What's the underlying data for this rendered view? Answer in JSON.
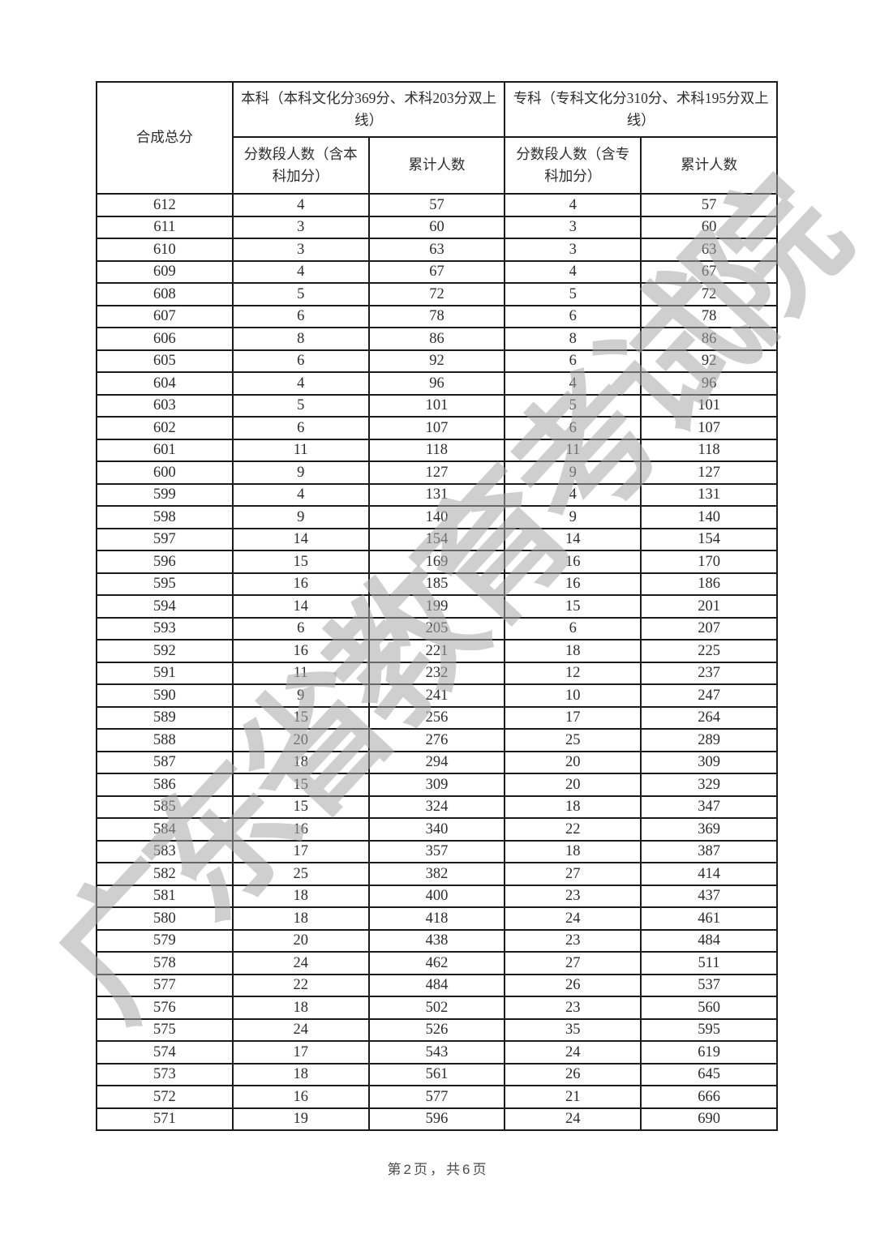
{
  "watermark": {
    "text": "广东省教育考试院"
  },
  "footer": {
    "page_indicator": "第2页，共6页"
  },
  "table": {
    "headers": {
      "score_col": "合成总分",
      "benke_group": "本科（本科文化分369分、术科203分双上线）",
      "zhuanke_group": "专科（专科文化分310分、术科195分双上线）",
      "benke_segment_count": "分数段人数（含本科加分）",
      "benke_cumulative": "累计人数",
      "zhuanke_segment_count": "分数段人数（含专科加分）",
      "zhuanke_cumulative": "累计人数"
    },
    "rows": [
      [
        612,
        4,
        57,
        4,
        57
      ],
      [
        611,
        3,
        60,
        3,
        60
      ],
      [
        610,
        3,
        63,
        3,
        63
      ],
      [
        609,
        4,
        67,
        4,
        67
      ],
      [
        608,
        5,
        72,
        5,
        72
      ],
      [
        607,
        6,
        78,
        6,
        78
      ],
      [
        606,
        8,
        86,
        8,
        86
      ],
      [
        605,
        6,
        92,
        6,
        92
      ],
      [
        604,
        4,
        96,
        4,
        96
      ],
      [
        603,
        5,
        101,
        5,
        101
      ],
      [
        602,
        6,
        107,
        6,
        107
      ],
      [
        601,
        11,
        118,
        11,
        118
      ],
      [
        600,
        9,
        127,
        9,
        127
      ],
      [
        599,
        4,
        131,
        4,
        131
      ],
      [
        598,
        9,
        140,
        9,
        140
      ],
      [
        597,
        14,
        154,
        14,
        154
      ],
      [
        596,
        15,
        169,
        16,
        170
      ],
      [
        595,
        16,
        185,
        16,
        186
      ],
      [
        594,
        14,
        199,
        15,
        201
      ],
      [
        593,
        6,
        205,
        6,
        207
      ],
      [
        592,
        16,
        221,
        18,
        225
      ],
      [
        591,
        11,
        232,
        12,
        237
      ],
      [
        590,
        9,
        241,
        10,
        247
      ],
      [
        589,
        15,
        256,
        17,
        264
      ],
      [
        588,
        20,
        276,
        25,
        289
      ],
      [
        587,
        18,
        294,
        20,
        309
      ],
      [
        586,
        15,
        309,
        20,
        329
      ],
      [
        585,
        15,
        324,
        18,
        347
      ],
      [
        584,
        16,
        340,
        22,
        369
      ],
      [
        583,
        17,
        357,
        18,
        387
      ],
      [
        582,
        25,
        382,
        27,
        414
      ],
      [
        581,
        18,
        400,
        23,
        437
      ],
      [
        580,
        18,
        418,
        24,
        461
      ],
      [
        579,
        20,
        438,
        23,
        484
      ],
      [
        578,
        24,
        462,
        27,
        511
      ],
      [
        577,
        22,
        484,
        26,
        537
      ],
      [
        576,
        18,
        502,
        23,
        560
      ],
      [
        575,
        24,
        526,
        35,
        595
      ],
      [
        574,
        17,
        543,
        24,
        619
      ],
      [
        573,
        18,
        561,
        26,
        645
      ],
      [
        572,
        16,
        577,
        21,
        666
      ],
      [
        571,
        19,
        596,
        24,
        690
      ]
    ]
  },
  "chart_data": {
    "type": "table",
    "title": "合成总分分数段统计表（第2页）",
    "columns": [
      "合成总分",
      "本科分数段人数（含本科加分）",
      "本科累计人数",
      "专科分数段人数（含专科加分）",
      "专科累计人数"
    ],
    "benke_note": "本科（本科文化分369分、术科203分双上线）",
    "zhuanke_note": "专科（专科文化分310分、术科195分双上线）"
  }
}
